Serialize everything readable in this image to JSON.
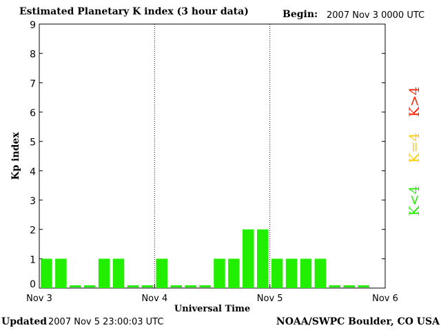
{
  "header": {
    "title": "Estimated Planetary K index (3 hour data)",
    "begin_label": "Begin:",
    "begin_value": "2007 Nov 3 0000 UTC"
  },
  "footer": {
    "updated_label": "Updated",
    "updated_value": "2007 Nov  5 23:00:03 UTC",
    "source": "NOAA/SWPC Boulder, CO USA"
  },
  "legend": [
    {
      "label": "K>4",
      "color": "#ff2200"
    },
    {
      "label": "K=4",
      "color": "#ffcc00"
    },
    {
      "label": "K<4",
      "color": "#22ee00"
    }
  ],
  "chart_data": {
    "type": "bar",
    "xlabel": "Universal Time",
    "ylabel": "Kp index",
    "ylim": [
      0,
      9
    ],
    "yticks": [
      0,
      1,
      2,
      3,
      4,
      5,
      6,
      7,
      8,
      9
    ],
    "x_tick_labels": [
      "Nov 3",
      "Nov 4",
      "Nov 5",
      "Nov 6"
    ],
    "day_dividers": [
      "Nov 4",
      "Nov 5"
    ],
    "bar_color": "#22ee00",
    "values": [
      1,
      1,
      0,
      0,
      1,
      1,
      0,
      0,
      1,
      0,
      0,
      0,
      1,
      1,
      2,
      2,
      1,
      1,
      1,
      1,
      0,
      0,
      0,
      null
    ]
  }
}
